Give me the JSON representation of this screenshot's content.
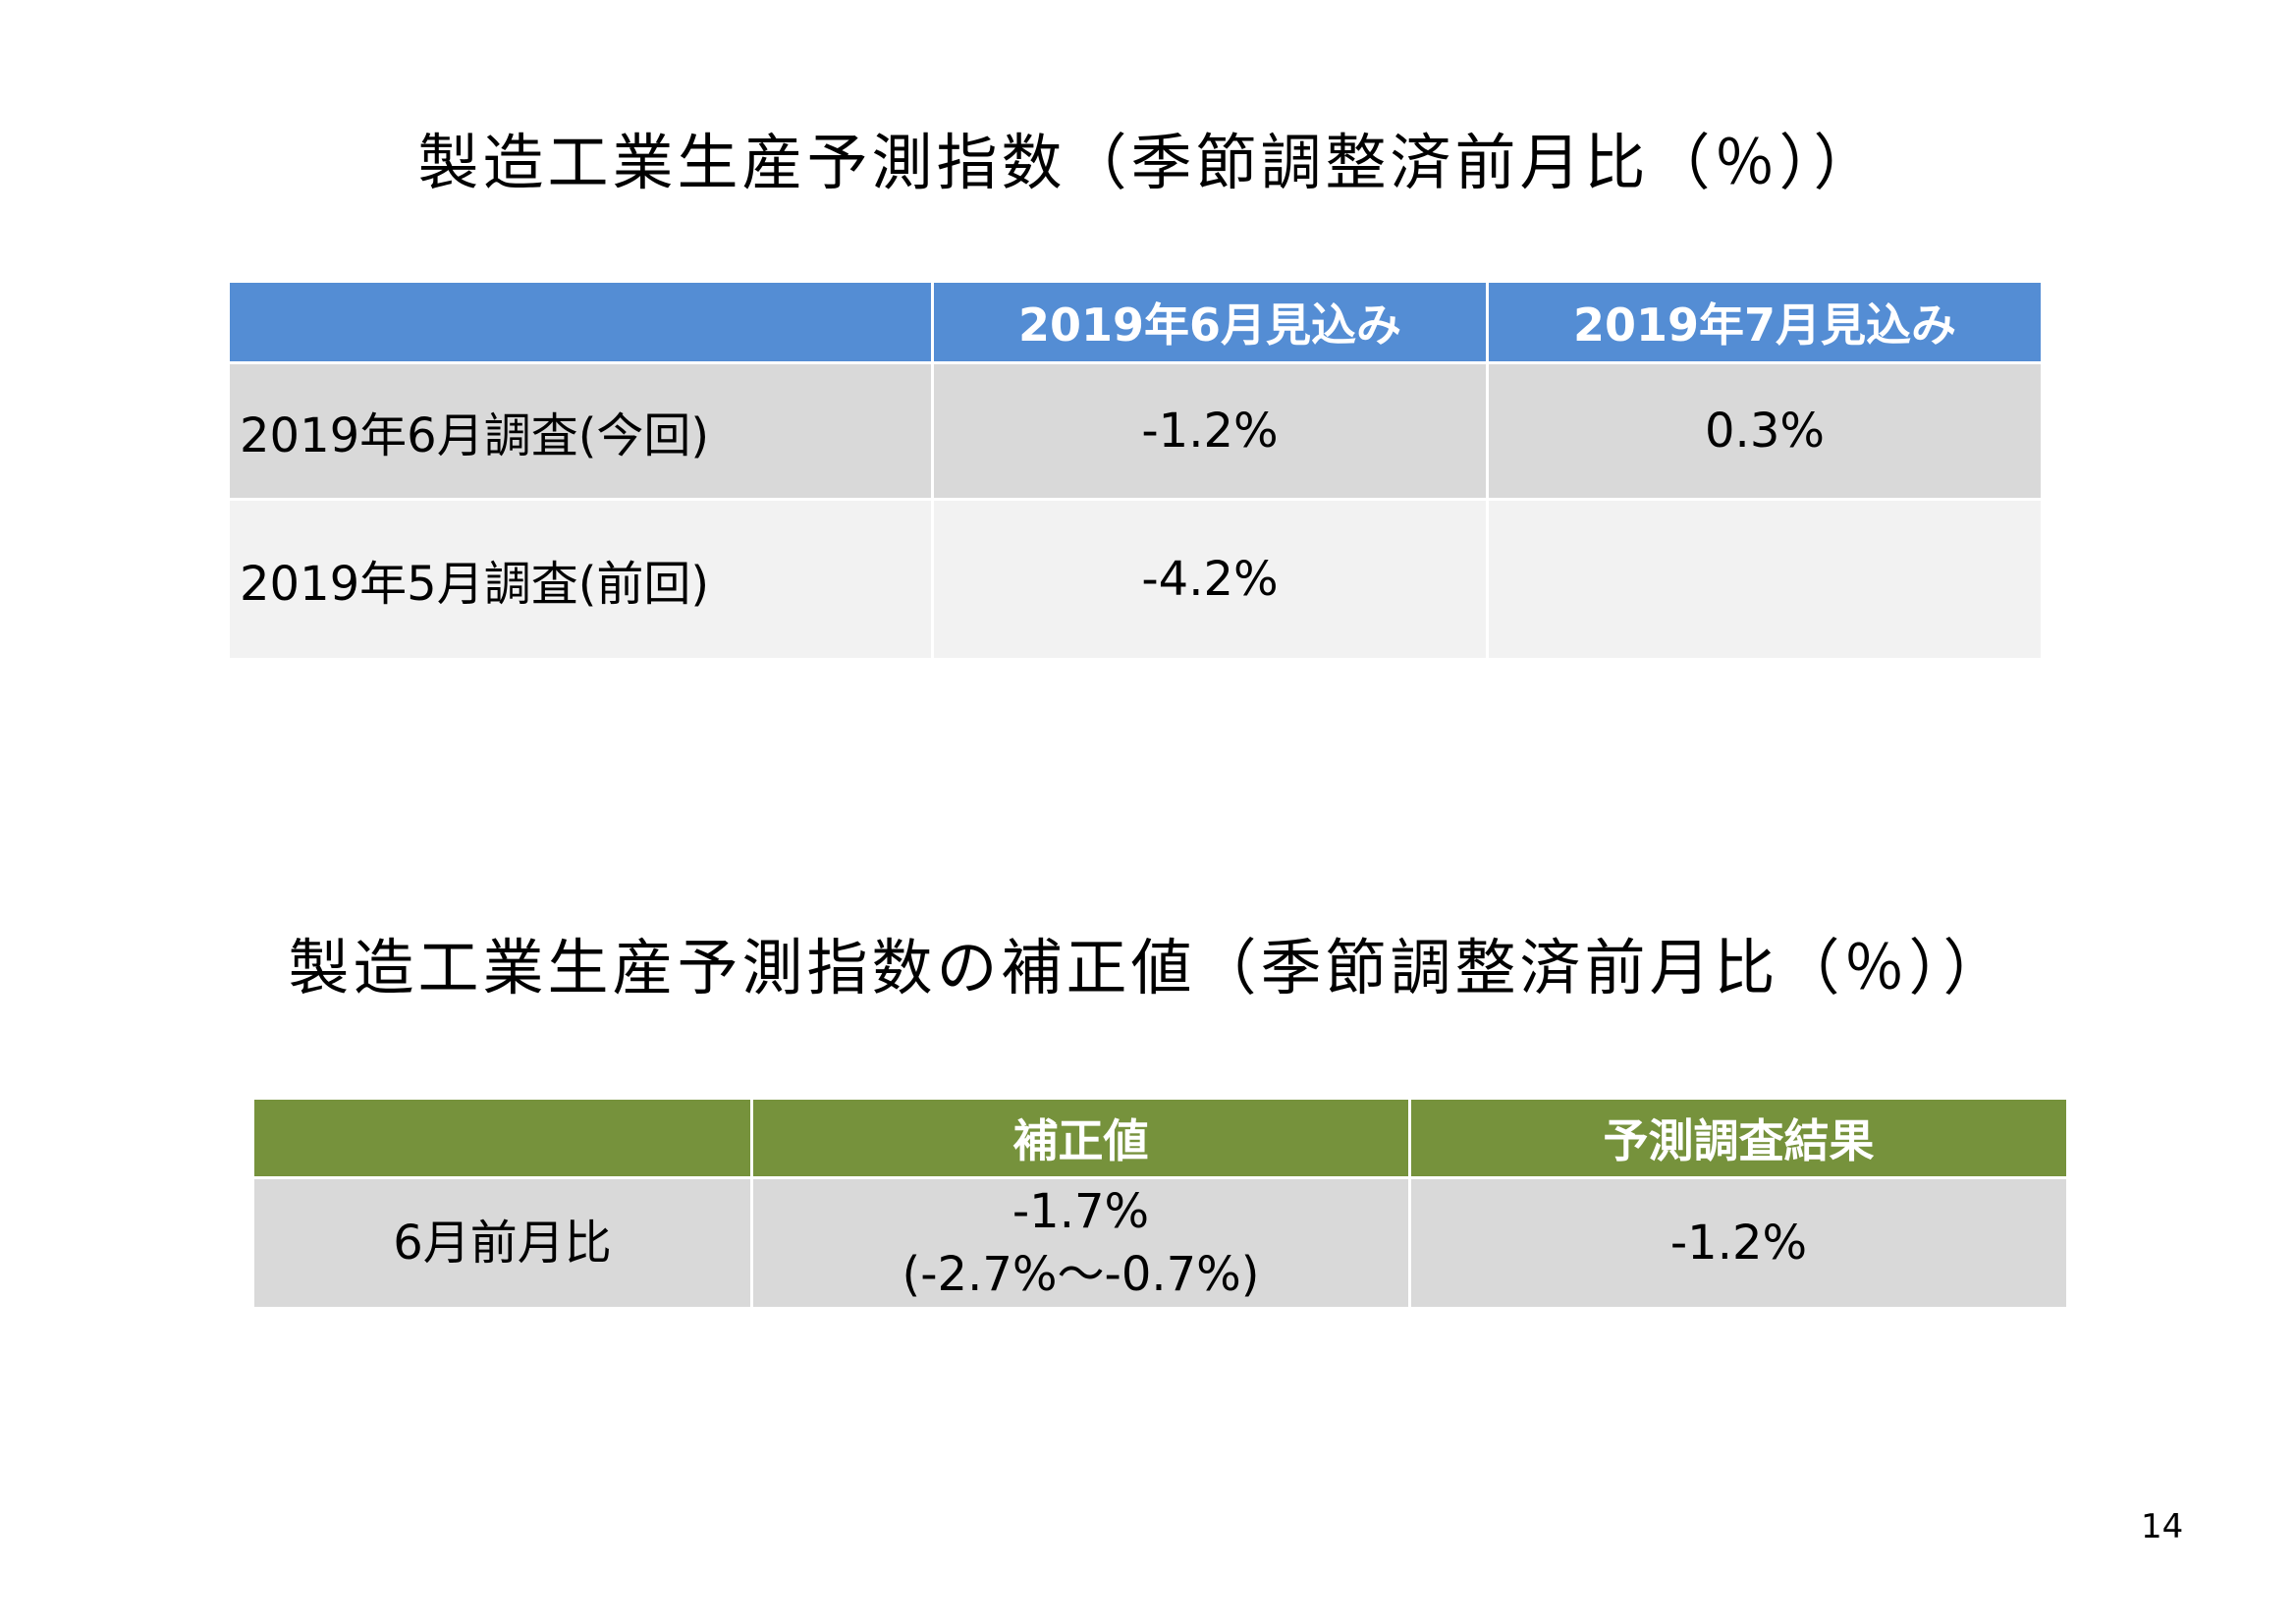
{
  "title1": "製造工業生産予測指数（季節調整済前月比（％））",
  "table1": {
    "headers": [
      "",
      "2019年6月見込み",
      "2019年7月見込み"
    ],
    "rows": [
      {
        "label": "2019年6月調査(今回)",
        "values": [
          "-1.2%",
          "0.3%"
        ]
      },
      {
        "label": "2019年5月調査(前回)",
        "values": [
          "-4.2%",
          ""
        ]
      }
    ]
  },
  "title2": "製造工業生産予測指数の補正値（季節調整済前月比（％））",
  "table2": {
    "headers": [
      "",
      "補正値",
      "予測調査結果"
    ],
    "rows": [
      {
        "label": "6月前月比",
        "value_main": "-1.7%",
        "value_range": "(-2.7%～-0.7%)",
        "survey": "-1.2%"
      }
    ]
  },
  "page_number": "14",
  "colors": {
    "table1_header": "#548dd4",
    "table2_header": "#76923c",
    "row_dark": "#d9d9d9",
    "row_light": "#f2f2f2"
  }
}
